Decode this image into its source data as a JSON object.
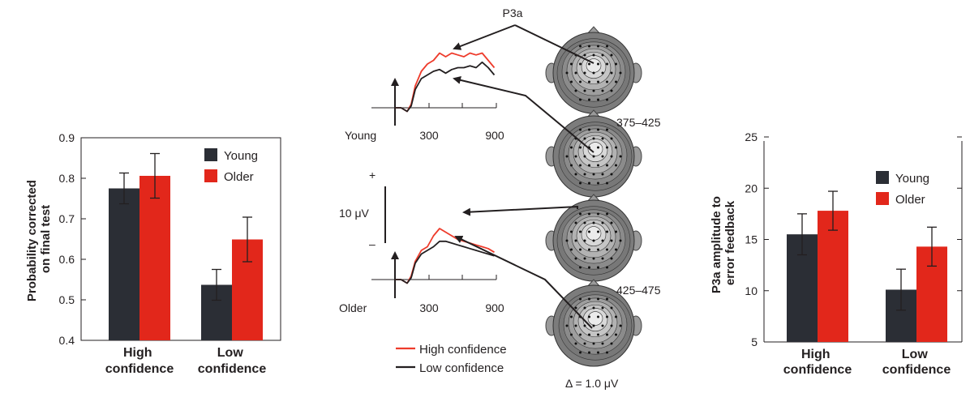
{
  "colors": {
    "young": "#2b2e35",
    "older": "#e2271b",
    "high": "#ee3b2b",
    "low": "#231f20"
  },
  "chart_data": [
    {
      "type": "bar",
      "ylabel": "Probability corrected on final test",
      "ylabel_lines": [
        "Probability corrected",
        "on final test"
      ],
      "categories": [
        "High confidence",
        "Low confidence"
      ],
      "category_lines": [
        [
          "High",
          "confidence"
        ],
        [
          "Low",
          "confidence"
        ]
      ],
      "ylim": [
        0.4,
        0.9
      ],
      "yticks": [
        "0.4",
        "0.5",
        "0.6",
        "0.7",
        "0.8",
        "0.9"
      ],
      "legend": [
        "Young",
        "Older"
      ],
      "series": [
        {
          "name": "Young",
          "values": [
            0.775,
            0.537
          ],
          "errors": [
            0.038,
            0.038
          ]
        },
        {
          "name": "Older",
          "values": [
            0.806,
            0.649
          ],
          "errors": [
            0.055,
            0.055
          ]
        }
      ]
    },
    {
      "type": "line",
      "annotation_top": "P3a",
      "window_young": "375–425",
      "window_older": "425–475",
      "scale_label": "10 μV",
      "plus": "+",
      "minus": "–",
      "delta_label": "Δ = 1.0 μV",
      "xticks": [
        "300",
        "900"
      ],
      "panels": [
        {
          "group": "Young",
          "series": [
            {
              "name": "High confidence",
              "x": [
                0,
                60,
                120,
                160,
                200,
                260,
                320,
                380,
                440,
                500,
                560,
                620,
                680,
                740,
                800,
                860,
                920,
                980
              ],
              "y": [
                0,
                0,
                -1,
                1,
                6,
                10,
                12,
                13,
                15,
                14,
                15,
                14.5,
                14,
                15,
                14.5,
                15,
                13,
                11
              ]
            },
            {
              "name": "Low confidence",
              "x": [
                0,
                60,
                120,
                160,
                200,
                260,
                320,
                380,
                440,
                500,
                560,
                620,
                680,
                740,
                800,
                860,
                920,
                980
              ],
              "y": [
                0,
                0,
                -1,
                0.5,
                5,
                8,
                9,
                10,
                10.5,
                9.5,
                10.5,
                11,
                11,
                11.5,
                11,
                12.5,
                11,
                9
              ]
            }
          ]
        },
        {
          "group": "Older",
          "series": [
            {
              "name": "High confidence",
              "x": [
                0,
                60,
                120,
                160,
                200,
                260,
                320,
                380,
                440,
                500,
                560,
                620,
                680,
                740,
                800,
                860,
                920,
                980
              ],
              "y": [
                0,
                0,
                -1,
                1,
                5,
                8,
                9,
                12,
                14,
                13,
                12,
                11,
                10.5,
                10,
                9.5,
                9,
                8.5,
                7.5
              ]
            },
            {
              "name": "Low confidence",
              "x": [
                0,
                60,
                120,
                160,
                200,
                260,
                320,
                380,
                440,
                500,
                560,
                620,
                680,
                740,
                800,
                860,
                920,
                980
              ],
              "y": [
                0,
                0,
                -1,
                0.5,
                4.5,
                7,
                8,
                9,
                10.5,
                10.5,
                10,
                9.5,
                9,
                8.5,
                8,
                7.5,
                7,
                6.5
              ]
            }
          ]
        }
      ],
      "legend": [
        "High confidence",
        "Low confidence"
      ]
    },
    {
      "type": "bar",
      "ylabel": "P3a amplitude to error feedback",
      "ylabel_lines": [
        "P3a amplitude to",
        "error feedback"
      ],
      "categories": [
        "High confidence",
        "Low confidence"
      ],
      "category_lines": [
        [
          "High",
          "confidence"
        ],
        [
          "Low",
          "confidence"
        ]
      ],
      "ylim": [
        5,
        25
      ],
      "yticks": [
        "5",
        "10",
        "15",
        "20",
        "25"
      ],
      "legend": [
        "Young",
        "Older"
      ],
      "series": [
        {
          "name": "Young",
          "values": [
            15.5,
            10.1
          ],
          "errors": [
            2.0,
            2.0
          ]
        },
        {
          "name": "Older",
          "values": [
            17.8,
            14.3
          ],
          "errors": [
            1.9,
            1.9
          ]
        }
      ]
    }
  ]
}
